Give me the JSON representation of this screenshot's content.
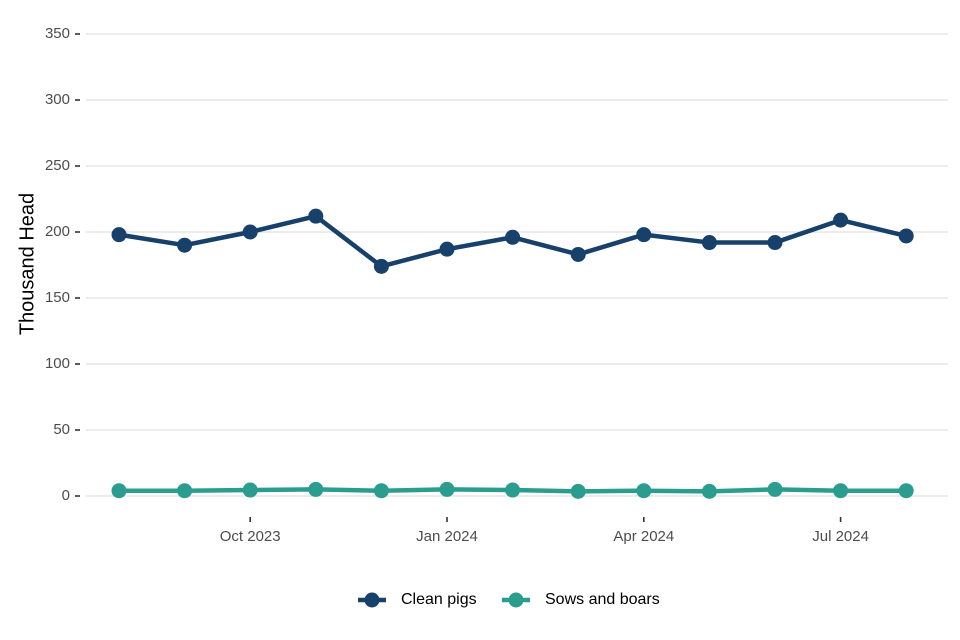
{
  "chart_data": {
    "type": "line",
    "ylabel": "Thousand Head",
    "ylim": [
      0,
      350
    ],
    "y_ticks": [
      0,
      50,
      100,
      150,
      200,
      250,
      300,
      350
    ],
    "x": [
      "2023-08",
      "2023-09",
      "2023-10",
      "2023-11",
      "2023-12",
      "2024-01",
      "2024-02",
      "2024-03",
      "2024-04",
      "2024-05",
      "2024-06",
      "2024-07",
      "2024-08"
    ],
    "x_ticks": [
      {
        "index": 2,
        "label": "Oct 2023"
      },
      {
        "index": 5,
        "label": "Jan 2024"
      },
      {
        "index": 8,
        "label": "Apr 2024"
      },
      {
        "index": 11,
        "label": "Jul 2024"
      }
    ],
    "grid": true,
    "legend_position": "bottom",
    "series": [
      {
        "name": "Clean pigs",
        "color": "#17406a",
        "values": [
          198,
          190,
          200,
          212,
          174,
          187,
          196,
          183,
          198,
          192,
          192,
          209,
          197
        ]
      },
      {
        "name": "Sows and boars",
        "color": "#2a9d8f",
        "values": [
          4,
          4,
          4.5,
          5,
          4,
          5,
          4.5,
          3.5,
          4,
          3.5,
          5,
          4,
          4
        ]
      }
    ]
  }
}
